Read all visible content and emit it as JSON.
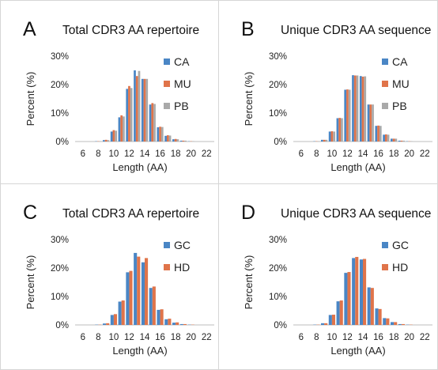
{
  "colors": {
    "CA": "#4a86c5",
    "MU": "#e0744a",
    "PB": "#a9a9a9",
    "GC": "#4a86c5",
    "HD": "#e0744a"
  },
  "chart_data": [
    {
      "panel": "A",
      "type": "bar",
      "title": "Total CDR3 AA repertoire",
      "xlabel": "Length (AA)",
      "ylabel": "Percent (%)",
      "xlim": [
        5,
        23
      ],
      "ylim": [
        0,
        30
      ],
      "xticks": [
        "6",
        "8",
        "10",
        "12",
        "14",
        "16",
        "18",
        "20",
        "22"
      ],
      "yticks": [
        "0%",
        "10%",
        "20%",
        "30%"
      ],
      "legend_position": "top-right",
      "x": [
        6,
        7,
        8,
        9,
        10,
        11,
        12,
        13,
        14,
        15,
        16,
        17,
        18,
        19,
        20,
        21,
        22
      ],
      "series": [
        {
          "name": "CA",
          "values": [
            0,
            0,
            0.1,
            0.5,
            3.5,
            8.5,
            18.5,
            25,
            22,
            13,
            5,
            2,
            0.8,
            0.3,
            0.1,
            0,
            0
          ]
        },
        {
          "name": "MU",
          "values": [
            0,
            0,
            0.1,
            0.6,
            4,
            9.2,
            19.5,
            23,
            22,
            13.5,
            5.2,
            2.2,
            0.9,
            0.3,
            0.1,
            0,
            0
          ]
        },
        {
          "name": "PB",
          "values": [
            0,
            0,
            0.1,
            0.5,
            3.8,
            8.8,
            18.8,
            24.8,
            22,
            13.2,
            5.1,
            2.1,
            0.8,
            0.3,
            0.1,
            0,
            0
          ]
        }
      ]
    },
    {
      "panel": "B",
      "type": "bar",
      "title": "Unique CDR3 AA sequence",
      "xlabel": "Length (AA)",
      "ylabel": "Percent (%)",
      "xlim": [
        5,
        23
      ],
      "ylim": [
        0,
        30
      ],
      "xticks": [
        "6",
        "8",
        "10",
        "12",
        "14",
        "16",
        "18",
        "20",
        "22"
      ],
      "yticks": [
        "0%",
        "10%",
        "20%",
        "30%"
      ],
      "legend_position": "top-right",
      "x": [
        6,
        7,
        8,
        9,
        10,
        11,
        12,
        13,
        14,
        15,
        16,
        17,
        18,
        19,
        20,
        21,
        22
      ],
      "series": [
        {
          "name": "CA",
          "values": [
            0,
            0,
            0.1,
            0.6,
            3.5,
            8.2,
            18.2,
            23.3,
            23,
            13,
            5.5,
            2.4,
            1,
            0.3,
            0.1,
            0,
            0
          ]
        },
        {
          "name": "MU",
          "values": [
            0,
            0,
            0.1,
            0.6,
            3.6,
            8.3,
            18.3,
            23.2,
            22.8,
            13,
            5.6,
            2.5,
            1,
            0.3,
            0.1,
            0,
            0
          ]
        },
        {
          "name": "PB",
          "values": [
            0,
            0,
            0.1,
            0.6,
            3.5,
            8.2,
            18.2,
            23.2,
            22.9,
            13,
            5.5,
            2.4,
            1,
            0.3,
            0.1,
            0,
            0
          ]
        }
      ]
    },
    {
      "panel": "C",
      "type": "bar",
      "title": "Total CDR3 AA repertoire",
      "xlabel": "Length (AA)",
      "ylabel": "Percent (%)",
      "xlim": [
        5,
        23
      ],
      "ylim": [
        0,
        30
      ],
      "xticks": [
        "6",
        "8",
        "10",
        "12",
        "14",
        "16",
        "18",
        "20",
        "22"
      ],
      "yticks": [
        "0%",
        "10%",
        "20%",
        "30%"
      ],
      "legend_position": "top-right",
      "x": [
        6,
        7,
        8,
        9,
        10,
        11,
        12,
        13,
        14,
        15,
        16,
        17,
        18,
        19,
        20,
        21,
        22
      ],
      "series": [
        {
          "name": "GC",
          "values": [
            0,
            0,
            0.1,
            0.5,
            3.5,
            8.2,
            18.5,
            25.3,
            22,
            13,
            5.3,
            2,
            0.8,
            0.3,
            0.1,
            0,
            0
          ]
        },
        {
          "name": "HD",
          "values": [
            0,
            0,
            0.1,
            0.6,
            3.8,
            8.6,
            19,
            24,
            23.5,
            13.5,
            5.5,
            2.2,
            0.9,
            0.3,
            0.1,
            0,
            0
          ]
        }
      ]
    },
    {
      "panel": "D",
      "type": "bar",
      "title": "Unique CDR3 AA sequence",
      "xlabel": "Length (AA)",
      "ylabel": "Percent (%)",
      "xlim": [
        5,
        23
      ],
      "ylim": [
        0,
        30
      ],
      "xticks": [
        "6",
        "8",
        "10",
        "12",
        "14",
        "16",
        "18",
        "20",
        "22"
      ],
      "yticks": [
        "0%",
        "10%",
        "20%",
        "30%"
      ],
      "legend_position": "top-right",
      "x": [
        6,
        7,
        8,
        9,
        10,
        11,
        12,
        13,
        14,
        15,
        16,
        17,
        18,
        19,
        20,
        21,
        22
      ],
      "series": [
        {
          "name": "GC",
          "values": [
            0,
            0,
            0.1,
            0.6,
            3.5,
            8.3,
            18.3,
            23.5,
            23,
            13.2,
            5.8,
            2.4,
            1,
            0.3,
            0.1,
            0,
            0
          ]
        },
        {
          "name": "HD",
          "values": [
            0,
            0,
            0.1,
            0.6,
            3.6,
            8.6,
            18.6,
            23.9,
            23.2,
            13,
            5.6,
            2.3,
            1,
            0.3,
            0.1,
            0,
            0
          ]
        }
      ]
    }
  ]
}
